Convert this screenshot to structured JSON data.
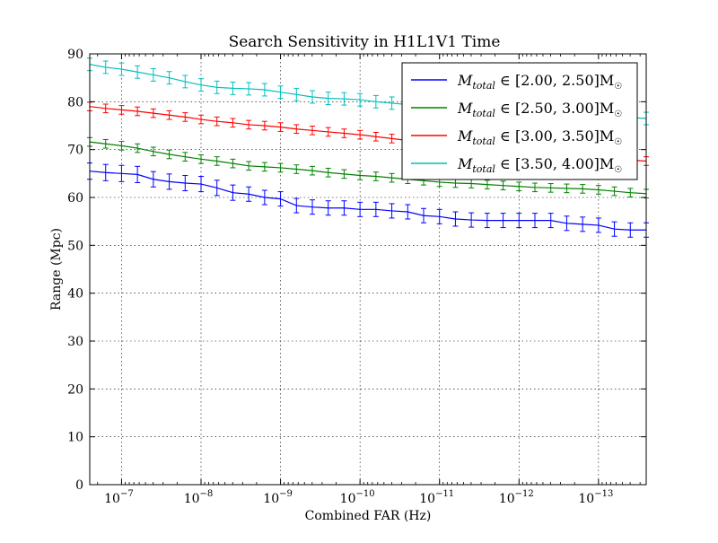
{
  "chart_data": {
    "type": "line",
    "title": "Search Sensitivity in H1L1V1 Time",
    "xlabel": "Combined FAR (Hz)",
    "ylabel": "Range (Mpc)",
    "xscale": "log",
    "x_reversed": true,
    "xlim_exponent": [
      -6.6,
      -13.6
    ],
    "ylim": [
      0,
      90
    ],
    "yticks": [
      "0",
      "10",
      "20",
      "30",
      "40",
      "50",
      "60",
      "70",
      "80",
      "90"
    ],
    "xtick_exponents": [
      -7,
      -8,
      -9,
      -10,
      -11,
      -12,
      -13
    ],
    "xtick_labels": [
      "10",
      "10",
      "10",
      "10",
      "10",
      "10",
      "10"
    ],
    "xtick_superscripts": [
      "−7",
      "−8",
      "−9",
      "−10",
      "−11",
      "−12",
      "−13"
    ],
    "grid": true,
    "legend_position": "top-right",
    "x_exponents": [
      -6.6,
      -6.8,
      -7.0,
      -7.2,
      -7.4,
      -7.6,
      -7.8,
      -8.0,
      -8.2,
      -8.4,
      -8.6,
      -8.8,
      -9.0,
      -9.2,
      -9.4,
      -9.6,
      -9.8,
      -10.0,
      -10.2,
      -10.4,
      -10.6,
      -10.8,
      -11.0,
      -11.2,
      -11.4,
      -11.6,
      -11.8,
      -12.0,
      -12.2,
      -12.4,
      -12.6,
      -12.8,
      -13.0,
      -13.2,
      -13.4,
      -13.6
    ],
    "series": [
      {
        "name": "M_total ∈ [2.00, 2.50]M☉",
        "color": "#0000ff",
        "values": [
          65.5,
          65.2,
          65.0,
          64.8,
          63.8,
          63.3,
          63.0,
          62.8,
          62.0,
          61.0,
          60.7,
          60.0,
          59.7,
          58.3,
          58.0,
          57.8,
          57.8,
          57.5,
          57.5,
          57.2,
          57.0,
          56.2,
          56.0,
          55.5,
          55.3,
          55.2,
          55.2,
          55.2,
          55.2,
          55.2,
          54.6,
          54.4,
          54.2,
          53.4,
          53.2,
          53.2
        ],
        "errors": [
          1.7,
          1.7,
          1.7,
          1.7,
          1.6,
          1.6,
          1.6,
          1.6,
          1.6,
          1.6,
          1.5,
          1.5,
          1.5,
          1.5,
          1.5,
          1.5,
          1.5,
          1.5,
          1.5,
          1.5,
          1.5,
          1.5,
          1.5,
          1.5,
          1.5,
          1.5,
          1.5,
          1.5,
          1.5,
          1.5,
          1.5,
          1.5,
          1.5,
          1.5,
          1.5,
          1.5
        ]
      },
      {
        "name": "M_total ∈ [2.50, 3.00]M☉",
        "color": "#008000",
        "values": [
          71.6,
          71.2,
          70.8,
          70.3,
          69.6,
          69.0,
          68.5,
          68.0,
          67.6,
          67.1,
          66.6,
          66.4,
          66.2,
          65.9,
          65.6,
          65.2,
          64.9,
          64.6,
          64.4,
          64.1,
          63.8,
          63.5,
          63.2,
          63.0,
          62.9,
          62.7,
          62.5,
          62.3,
          62.1,
          62.0,
          61.9,
          61.8,
          61.6,
          61.3,
          61.0,
          60.8
        ],
        "errors": [
          0.9,
          0.9,
          0.9,
          0.9,
          0.9,
          0.9,
          0.9,
          0.9,
          0.9,
          0.9,
          0.9,
          0.9,
          0.9,
          0.9,
          0.9,
          0.9,
          0.9,
          0.9,
          0.9,
          0.9,
          0.9,
          0.9,
          0.9,
          0.9,
          0.9,
          0.9,
          0.9,
          0.9,
          0.9,
          0.9,
          0.9,
          0.9,
          0.9,
          0.9,
          0.9,
          0.9
        ]
      },
      {
        "name": "M_total ∈ [3.00, 3.50]M☉",
        "color": "#ff0000",
        "values": [
          79.0,
          78.6,
          78.3,
          78.0,
          77.6,
          77.2,
          76.8,
          76.3,
          75.9,
          75.6,
          75.2,
          75.0,
          74.7,
          74.3,
          74.0,
          73.7,
          73.4,
          73.1,
          72.7,
          72.3,
          71.9,
          71.5,
          71.2,
          70.9,
          70.6,
          70.3,
          70.0,
          69.7,
          69.4,
          69.1,
          68.8,
          68.5,
          68.3,
          68.0,
          67.8,
          67.6
        ],
        "errors": [
          0.9,
          0.9,
          0.9,
          0.9,
          0.9,
          0.9,
          0.9,
          0.9,
          0.9,
          0.9,
          0.9,
          0.9,
          0.9,
          0.9,
          0.9,
          0.9,
          0.9,
          0.9,
          0.9,
          0.9,
          0.9,
          0.9,
          0.9,
          0.9,
          0.9,
          0.9,
          0.9,
          0.9,
          0.9,
          0.9,
          0.9,
          0.9,
          0.9,
          0.9,
          0.9,
          0.9
        ]
      },
      {
        "name": "M_total ∈ [3.50, 4.00]M☉",
        "color": "#00bfbf",
        "values": [
          87.8,
          87.2,
          86.8,
          86.2,
          85.6,
          85.0,
          84.2,
          83.5,
          83.0,
          82.8,
          82.7,
          82.5,
          82.0,
          81.5,
          81.0,
          80.7,
          80.6,
          80.4,
          80.0,
          79.7,
          79.4,
          79.1,
          78.9,
          78.7,
          78.5,
          78.3,
          78.2,
          78.0,
          77.9,
          77.7,
          77.5,
          77.4,
          77.2,
          77.0,
          76.7,
          76.5
        ],
        "errors": [
          1.3,
          1.3,
          1.3,
          1.3,
          1.3,
          1.3,
          1.3,
          1.3,
          1.3,
          1.3,
          1.3,
          1.3,
          1.3,
          1.3,
          1.3,
          1.3,
          1.3,
          1.3,
          1.3,
          1.3,
          1.3,
          1.3,
          1.3,
          1.3,
          1.3,
          1.3,
          1.3,
          1.3,
          1.3,
          1.3,
          1.3,
          1.3,
          1.3,
          1.3,
          1.3,
          1.3
        ]
      }
    ],
    "legend": [
      {
        "prefix": "M",
        "sub": "total",
        "range": " ∈ [2.00, 2.50]M",
        "sun": "☉"
      },
      {
        "prefix": "M",
        "sub": "total",
        "range": " ∈ [2.50, 3.00]M",
        "sun": "☉"
      },
      {
        "prefix": "M",
        "sub": "total",
        "range": " ∈ [3.00, 3.50]M",
        "sun": "☉"
      },
      {
        "prefix": "M",
        "sub": "total",
        "range": " ∈ [3.50, 4.00]M",
        "sun": "☉"
      }
    ]
  }
}
